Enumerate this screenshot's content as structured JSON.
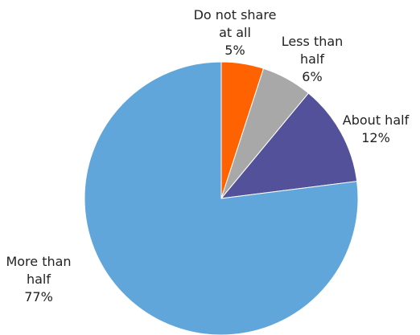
{
  "chart_data": {
    "type": "pie",
    "start_angle_deg": 0,
    "direction": "clockwise",
    "slices": [
      {
        "label_lines": [
          "Do not share",
          "at all"
        ],
        "value": 5,
        "value_label": "5%",
        "color": "#FF6200"
      },
      {
        "label_lines": [
          "Less than",
          "half"
        ],
        "value": 6,
        "value_label": "6%",
        "color": "#A8A8A8"
      },
      {
        "label_lines": [
          "About half"
        ],
        "value": 12,
        "value_label": "12%",
        "color": "#525199"
      },
      {
        "label_lines": [
          "More than",
          "half"
        ],
        "value": 77,
        "value_label": "77%",
        "color": "#60A6DA"
      }
    ],
    "legend": "none"
  }
}
